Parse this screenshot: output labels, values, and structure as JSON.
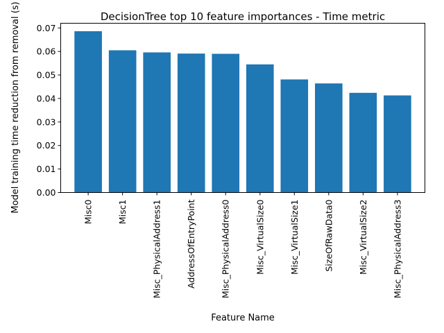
{
  "chart_data": {
    "type": "bar",
    "title": "DecisionTree top 10 feature importances - Time metric",
    "xlabel": "Feature Name",
    "ylabel": "Model training time reduction from removal (s)",
    "categories": [
      "Misc0",
      "Misc1",
      "Misc_PhysicalAddress1",
      "AddressOfEntryPoint",
      "Misc_PhysicalAddress0",
      "Misc_VirtualSize0",
      "Misc_VirtualSize1",
      "SizeOfRawData0",
      "Misc_VirtualSize2",
      "Misc_PhysicalAddress3"
    ],
    "values": [
      0.0686,
      0.0605,
      0.0596,
      0.0591,
      0.059,
      0.0545,
      0.0481,
      0.0464,
      0.0424,
      0.0413
    ],
    "ylim": [
      0,
      0.072
    ],
    "yticks": [
      0.0,
      0.01,
      0.02,
      0.03,
      0.04,
      0.05,
      0.06,
      0.07
    ],
    "bar_color": "#1f77b4",
    "grid": false,
    "legend": "none"
  }
}
